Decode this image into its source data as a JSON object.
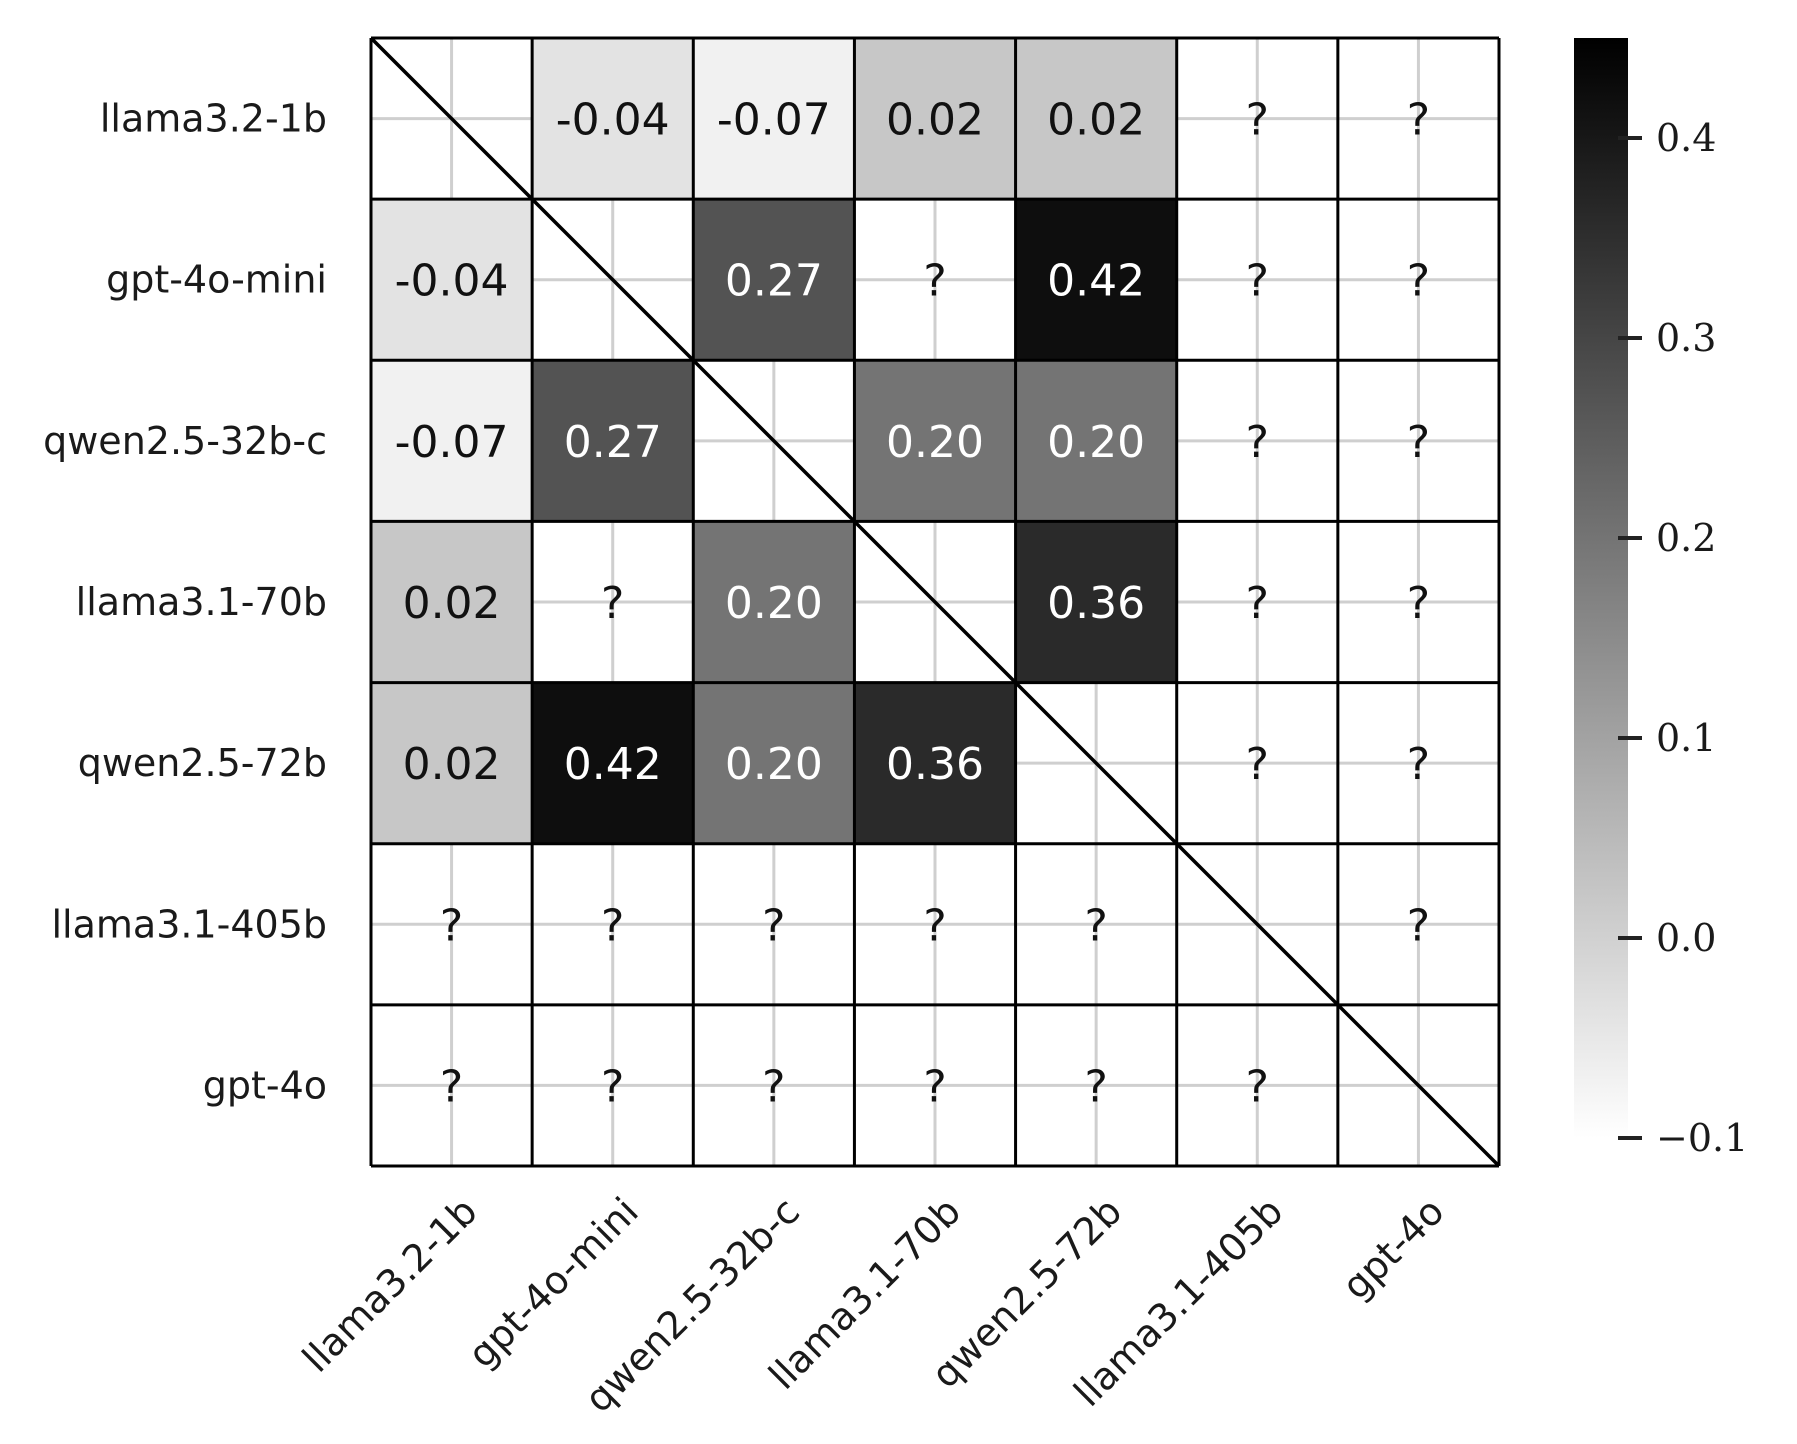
{
  "chart_data": {
    "type": "heatmap",
    "title": "",
    "xlabel": "",
    "ylabel": "",
    "row_labels": [
      "llama3.2-1b",
      "gpt-4o-mini",
      "qwen2.5-32b-c",
      "llama3.1-70b",
      "qwen2.5-72b",
      "llama3.1-405b",
      "gpt-4o"
    ],
    "col_labels": [
      "llama3.2-1b",
      "gpt-4o-mini",
      "qwen2.5-32b-c",
      "llama3.1-70b",
      "qwen2.5-72b",
      "llama3.1-405b",
      "gpt-4o"
    ],
    "values": [
      [
        null,
        -0.04,
        -0.07,
        0.02,
        0.02,
        "?",
        "?"
      ],
      [
        -0.04,
        null,
        0.27,
        "?",
        0.42,
        "?",
        "?"
      ],
      [
        -0.07,
        0.27,
        null,
        0.2,
        0.2,
        "?",
        "?"
      ],
      [
        0.02,
        "?",
        0.2,
        null,
        0.36,
        "?",
        "?"
      ],
      [
        0.02,
        0.42,
        0.2,
        0.36,
        null,
        "?",
        "?"
      ],
      [
        "?",
        "?",
        "?",
        "?",
        "?",
        null,
        "?"
      ],
      [
        "?",
        "?",
        "?",
        "?",
        "?",
        "?",
        null
      ]
    ],
    "display_text": [
      [
        "",
        "-0.04",
        "-0.07",
        "0.02",
        "0.02",
        "?",
        "?"
      ],
      [
        "-0.04",
        "",
        "0.27",
        "?",
        "0.42",
        "?",
        "?"
      ],
      [
        "-0.07",
        "0.27",
        "",
        "0.20",
        "0.20",
        "?",
        "?"
      ],
      [
        "0.02",
        "?",
        "0.20",
        "",
        "0.36",
        "?",
        "?"
      ],
      [
        "0.02",
        "0.42",
        "0.20",
        "0.36",
        "",
        "?",
        "?"
      ],
      [
        "?",
        "?",
        "?",
        "?",
        "?",
        "",
        "?"
      ],
      [
        "?",
        "?",
        "?",
        "?",
        "?",
        "?",
        ""
      ]
    ],
    "unknown_marker": "?",
    "diagonal_style": "slash",
    "colorbar": {
      "vmin": -0.1,
      "vmax": 0.45,
      "ticks": [
        -0.1,
        0.0,
        0.1,
        0.2,
        0.3,
        0.4
      ],
      "tick_labels": [
        "−0.1",
        "0.0",
        "0.1",
        "0.2",
        "0.3",
        "0.4"
      ],
      "cmap": "white-to-black"
    },
    "grid": true,
    "x_tick_rotation": "45 degrees"
  }
}
